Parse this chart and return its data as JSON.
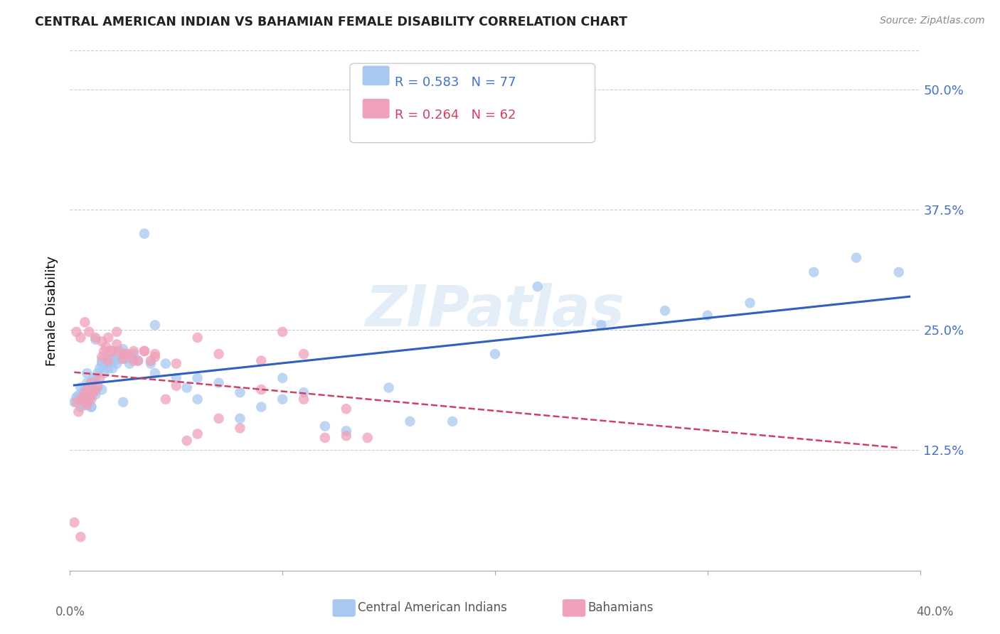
{
  "title": "CENTRAL AMERICAN INDIAN VS BAHAMIAN FEMALE DISABILITY CORRELATION CHART",
  "source": "Source: ZipAtlas.com",
  "ylabel": "Female Disability",
  "ytick_labels": [
    "50.0%",
    "37.5%",
    "25.0%",
    "12.5%"
  ],
  "ytick_values": [
    0.5,
    0.375,
    0.25,
    0.125
  ],
  "xlim": [
    0.0,
    0.4
  ],
  "ylim": [
    0.0,
    0.54
  ],
  "legend1_r": "R = 0.583",
  "legend1_n": "N = 77",
  "legend2_r": "R = 0.264",
  "legend2_n": "N = 62",
  "color_blue": "#A8C8F0",
  "color_pink": "#F0A0B8",
  "line_blue": "#3060C0",
  "line_pink": "#D04060",
  "watermark": "ZIPatlas",
  "blue_x": [
    0.002,
    0.003,
    0.004,
    0.004,
    0.005,
    0.005,
    0.006,
    0.006,
    0.007,
    0.007,
    0.008,
    0.008,
    0.009,
    0.009,
    0.01,
    0.01,
    0.011,
    0.011,
    0.012,
    0.012,
    0.013,
    0.013,
    0.014,
    0.015,
    0.015,
    0.016,
    0.017,
    0.018,
    0.019,
    0.02,
    0.021,
    0.022,
    0.023,
    0.024,
    0.025,
    0.026,
    0.028,
    0.03,
    0.032,
    0.035,
    0.038,
    0.04,
    0.045,
    0.05,
    0.055,
    0.06,
    0.07,
    0.08,
    0.09,
    0.1,
    0.11,
    0.12,
    0.13,
    0.15,
    0.16,
    0.18,
    0.2,
    0.22,
    0.25,
    0.28,
    0.3,
    0.32,
    0.35,
    0.37,
    0.39,
    0.008,
    0.01,
    0.012,
    0.015,
    0.018,
    0.02,
    0.025,
    0.03,
    0.04,
    0.06,
    0.08,
    0.1
  ],
  "blue_y": [
    0.175,
    0.18,
    0.178,
    0.182,
    0.17,
    0.19,
    0.175,
    0.185,
    0.172,
    0.188,
    0.18,
    0.195,
    0.178,
    0.192,
    0.17,
    0.195,
    0.185,
    0.2,
    0.183,
    0.198,
    0.19,
    0.205,
    0.21,
    0.188,
    0.218,
    0.205,
    0.215,
    0.21,
    0.22,
    0.21,
    0.218,
    0.215,
    0.225,
    0.22,
    0.23,
    0.22,
    0.215,
    0.225,
    0.218,
    0.35,
    0.215,
    0.205,
    0.215,
    0.2,
    0.19,
    0.2,
    0.195,
    0.185,
    0.17,
    0.2,
    0.185,
    0.15,
    0.145,
    0.19,
    0.155,
    0.155,
    0.225,
    0.295,
    0.255,
    0.27,
    0.265,
    0.278,
    0.31,
    0.325,
    0.31,
    0.205,
    0.17,
    0.24,
    0.215,
    0.215,
    0.22,
    0.175,
    0.22,
    0.255,
    0.178,
    0.158,
    0.178
  ],
  "pink_x": [
    0.002,
    0.003,
    0.004,
    0.005,
    0.005,
    0.006,
    0.007,
    0.007,
    0.008,
    0.008,
    0.009,
    0.01,
    0.01,
    0.011,
    0.012,
    0.013,
    0.014,
    0.015,
    0.016,
    0.017,
    0.018,
    0.019,
    0.02,
    0.022,
    0.023,
    0.025,
    0.027,
    0.03,
    0.032,
    0.035,
    0.038,
    0.04,
    0.045,
    0.05,
    0.055,
    0.06,
    0.07,
    0.08,
    0.09,
    0.1,
    0.11,
    0.12,
    0.13,
    0.14,
    0.003,
    0.005,
    0.007,
    0.009,
    0.012,
    0.015,
    0.018,
    0.022,
    0.026,
    0.03,
    0.035,
    0.04,
    0.05,
    0.06,
    0.07,
    0.09,
    0.11,
    0.13
  ],
  "pink_y": [
    0.05,
    0.175,
    0.165,
    0.178,
    0.035,
    0.178,
    0.175,
    0.185,
    0.172,
    0.188,
    0.18,
    0.178,
    0.195,
    0.185,
    0.188,
    0.192,
    0.2,
    0.222,
    0.228,
    0.232,
    0.218,
    0.228,
    0.228,
    0.235,
    0.228,
    0.22,
    0.225,
    0.228,
    0.218,
    0.228,
    0.218,
    0.222,
    0.178,
    0.215,
    0.135,
    0.142,
    0.158,
    0.148,
    0.218,
    0.248,
    0.225,
    0.138,
    0.14,
    0.138,
    0.248,
    0.242,
    0.258,
    0.248,
    0.242,
    0.238,
    0.242,
    0.248,
    0.225,
    0.218,
    0.228,
    0.225,
    0.192,
    0.242,
    0.225,
    0.188,
    0.178,
    0.168
  ]
}
